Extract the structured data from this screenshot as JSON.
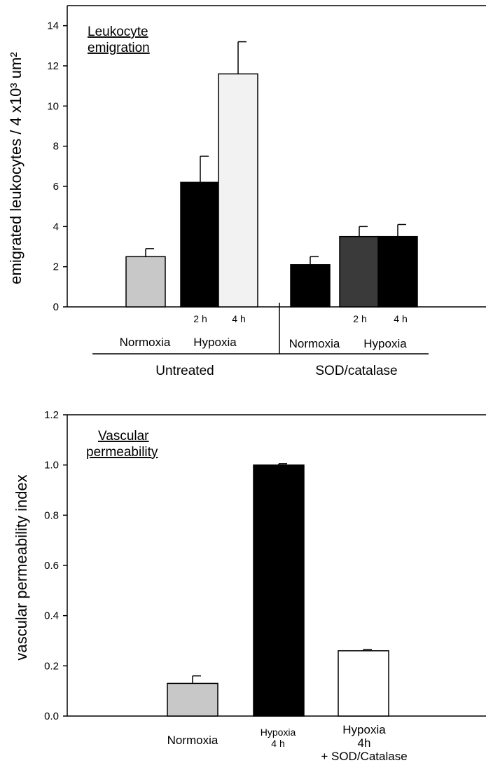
{
  "colors": {
    "normoxia": "#c8c8c8",
    "hypoxia": "#000000",
    "hypoxia_4h_untreated": "#f2f2f2",
    "treated_hypoxia_2h": "#3a3a3a",
    "sod_catalase": "#ffffff"
  },
  "chart_data": [
    {
      "type": "bar",
      "title": "",
      "annotation_line1": "Leukocyte",
      "annotation_line2": "emigration",
      "ylabel": "emigrated leukocytes / 4 x10³ um²",
      "ylim": [
        0,
        15
      ],
      "yticks": [
        "0",
        "2",
        "4",
        "6",
        "8",
        "10",
        "12",
        "14"
      ],
      "categories": [
        "Normoxia",
        "Hypoxia 2 h",
        "Hypoxia 4 h",
        "Normoxia",
        "Hypoxia 2 h",
        "Hypoxia 4 h"
      ],
      "values": [
        2.5,
        6.2,
        11.6,
        2.1,
        3.5,
        3.5
      ],
      "errors": [
        0.4,
        1.3,
        1.6,
        0.4,
        0.5,
        0.6
      ],
      "x_labels": {
        "time_2h": "2 h",
        "time_4h": "4 h",
        "normoxia_left": "Normoxia",
        "hypoxia_left": "Hypoxia",
        "normoxia_right": "Normoxia",
        "hypoxia_right": "Hypoxia"
      },
      "groups": [
        "Untreated",
        "SOD/catalase"
      ],
      "grid": false
    },
    {
      "type": "bar",
      "title": "",
      "annotation_line1": "Vascular",
      "annotation_line2": "permeability",
      "ylabel": "vascular permeability index",
      "ylim": [
        0,
        1.2
      ],
      "yticks": [
        "0.0",
        "0.2",
        "0.4",
        "0.6",
        "0.8",
        "1.0",
        "1.2"
      ],
      "categories": [
        "Normoxia",
        "Hypoxia 4 h",
        "Hypoxia 4h + SOD/Catalase"
      ],
      "values": [
        0.13,
        1.0,
        0.26
      ],
      "errors": [
        0.03,
        0.005,
        0.005
      ],
      "x_labels": {
        "normoxia": "Normoxia",
        "hypoxia_line1": "Hypoxia",
        "hypoxia_line2": "4 h",
        "sod_line1": "Hypoxia",
        "sod_line2": "4h",
        "sod_line3": "+ SOD/Catalase"
      },
      "grid": false
    }
  ]
}
